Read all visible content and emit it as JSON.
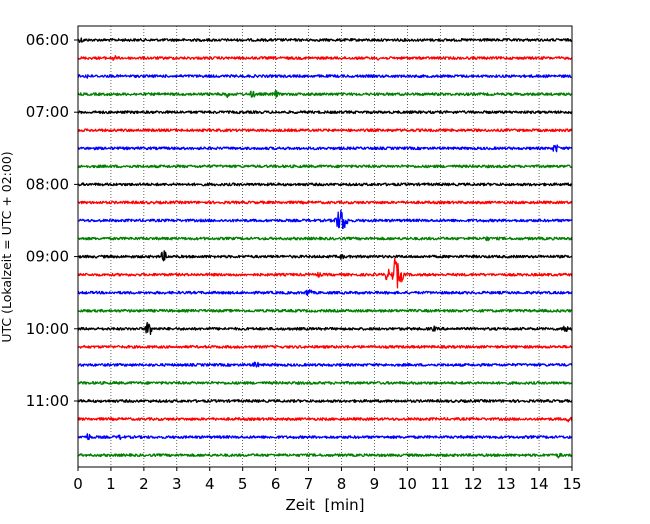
{
  "chart_data": {
    "type": "line",
    "xlabel": "Zeit  [min]",
    "ylabel": "UTC (Lokalzeit = UTC + 02:00)",
    "xlim": [
      0,
      15
    ],
    "x_ticks": [
      0,
      1,
      2,
      3,
      4,
      5,
      6,
      7,
      8,
      9,
      10,
      11,
      12,
      13,
      14,
      15
    ],
    "x_tick_labels": [
      "0",
      "1",
      "2",
      "3",
      "4",
      "5",
      "6",
      "7",
      "8",
      "9",
      "10",
      "11",
      "12",
      "13",
      "14",
      "15"
    ],
    "y_tick_labels": [
      "06:00",
      "07:00",
      "08:00",
      "09:00",
      "10:00",
      "11:00"
    ],
    "x_grid": "dotted vertical lines at every minute",
    "trace_interval_minutes": 15,
    "color_cycle": [
      "#000000",
      "#ff0000",
      "#0000ff",
      "#008000"
    ],
    "series": [
      {
        "start": "06:00",
        "color": "#000000",
        "events": [
          {
            "x": 0.1,
            "amp": 3
          }
        ]
      },
      {
        "start": "06:15",
        "color": "#ff0000",
        "events": [
          {
            "x": 1.1,
            "amp": 3
          },
          {
            "x": 9.1,
            "amp": 2
          }
        ]
      },
      {
        "start": "06:30",
        "color": "#0000ff",
        "events": [
          {
            "x": 0.3,
            "amp": 3
          }
        ]
      },
      {
        "start": "06:45",
        "color": "#008000",
        "events": [
          {
            "x": 4.5,
            "amp": 4
          },
          {
            "x": 5.3,
            "amp": 4
          },
          {
            "x": 6.0,
            "amp": 4
          }
        ]
      },
      {
        "start": "07:00",
        "color": "#000000",
        "events": []
      },
      {
        "start": "07:15",
        "color": "#ff0000",
        "events": []
      },
      {
        "start": "07:30",
        "color": "#0000ff",
        "events": [
          {
            "x": 14.5,
            "amp": 5
          }
        ]
      },
      {
        "start": "07:45",
        "color": "#008000",
        "events": []
      },
      {
        "start": "08:00",
        "color": "#000000",
        "events": []
      },
      {
        "start": "08:15",
        "color": "#ff0000",
        "events": []
      },
      {
        "start": "08:30",
        "color": "#0000ff",
        "events": [
          {
            "x": 7.9,
            "amp": 9
          },
          {
            "x": 8.0,
            "amp": 14
          },
          {
            "x": 8.1,
            "amp": 8
          }
        ]
      },
      {
        "start": "08:45",
        "color": "#008000",
        "events": [
          {
            "x": 12.4,
            "amp": 3
          }
        ]
      },
      {
        "start": "09:00",
        "color": "#000000",
        "events": [
          {
            "x": 2.6,
            "amp": 6
          },
          {
            "x": 8.0,
            "amp": 3
          }
        ]
      },
      {
        "start": "09:15",
        "color": "#ff0000",
        "events": [
          {
            "x": 7.3,
            "amp": 3
          },
          {
            "x": 9.4,
            "amp": 6
          },
          {
            "x": 9.65,
            "amp": 18
          },
          {
            "x": 9.8,
            "amp": 8
          }
        ]
      },
      {
        "start": "09:30",
        "color": "#0000ff",
        "events": [
          {
            "x": 7.0,
            "amp": 5
          }
        ]
      },
      {
        "start": "09:45",
        "color": "#008000",
        "events": []
      },
      {
        "start": "10:00",
        "color": "#000000",
        "events": [
          {
            "x": 2.15,
            "amp": 9
          },
          {
            "x": 10.8,
            "amp": 3
          },
          {
            "x": 14.8,
            "amp": 5
          }
        ]
      },
      {
        "start": "10:15",
        "color": "#ff0000",
        "events": []
      },
      {
        "start": "10:30",
        "color": "#0000ff",
        "events": [
          {
            "x": 5.4,
            "amp": 4
          }
        ]
      },
      {
        "start": "10:45",
        "color": "#008000",
        "events": []
      },
      {
        "start": "11:00",
        "color": "#000000",
        "events": []
      },
      {
        "start": "11:15",
        "color": "#ff0000",
        "events": [
          {
            "x": 14.9,
            "amp": 3
          }
        ]
      },
      {
        "start": "11:30",
        "color": "#0000ff",
        "events": [
          {
            "x": 0.3,
            "amp": 4
          },
          {
            "x": 1.3,
            "amp": 3
          }
        ]
      },
      {
        "start": "11:45",
        "color": "#008000",
        "events": [
          {
            "x": 14.6,
            "amp": 3
          }
        ]
      }
    ]
  }
}
